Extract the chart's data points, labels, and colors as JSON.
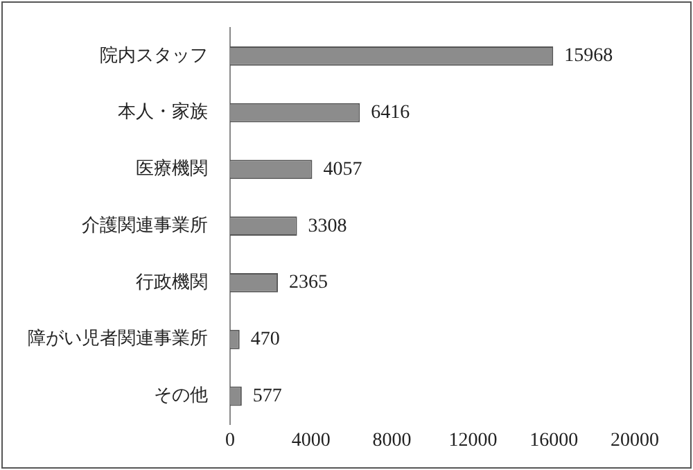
{
  "chart_data": {
    "type": "bar",
    "orientation": "horizontal",
    "categories": [
      "院内スタッフ",
      "本人・家族",
      "医療機関",
      "介護関連事業所",
      "行政機関",
      "障がい児者関連事業所",
      "その他"
    ],
    "values": [
      15968,
      6416,
      4057,
      3308,
      2365,
      470,
      577
    ],
    "color": "#8c8c8c",
    "xlim": [
      0,
      20000
    ],
    "xticks": [
      0,
      4000,
      8000,
      12000,
      16000,
      20000
    ],
    "data_labels": true,
    "grid": false,
    "legend": false
  }
}
